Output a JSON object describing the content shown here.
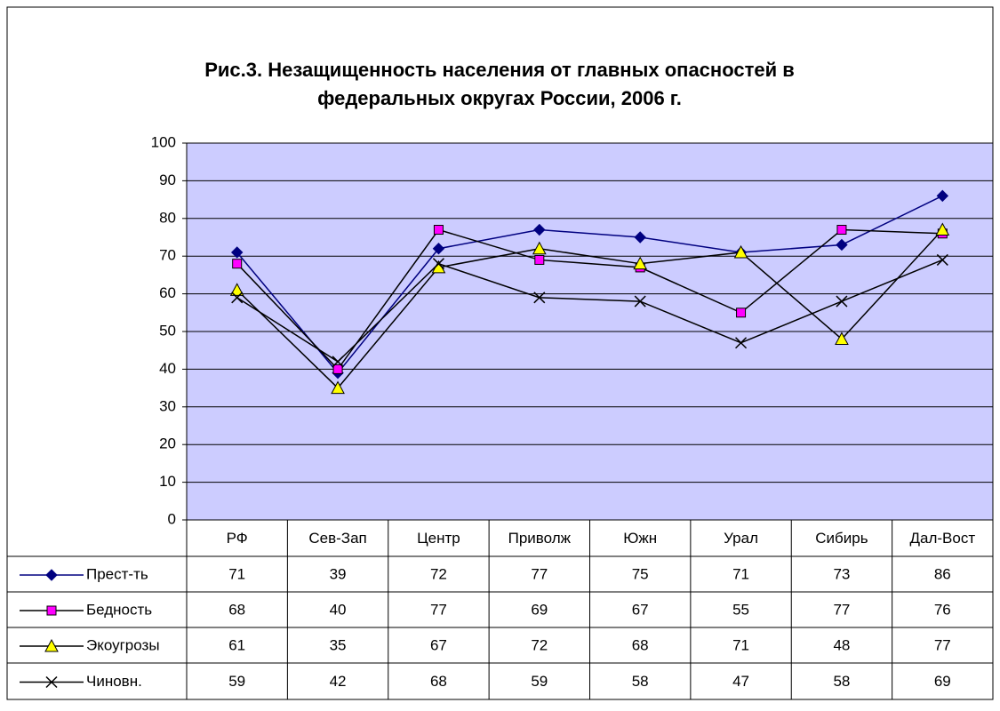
{
  "chart_data": {
    "type": "line",
    "title": "Рис.3. Незащищенность населения от главных опасностей в федеральных округах России, 2006 г.",
    "categories": [
      "РФ",
      "Сев-Зап",
      "Центр",
      "Приволж",
      "Южн",
      "Урал",
      "Сибирь",
      "Дал-Вост"
    ],
    "series": [
      {
        "name": "Прест-ть",
        "color": "#000080",
        "marker": "diamond",
        "marker_color": "#000080",
        "values": [
          71,
          39,
          72,
          77,
          75,
          71,
          73,
          86
        ]
      },
      {
        "name": "Бедность",
        "color": "#000000",
        "marker": "square",
        "marker_color": "#ff00ff",
        "values": [
          68,
          40,
          77,
          69,
          67,
          55,
          77,
          76
        ]
      },
      {
        "name": "Экоугрозы",
        "color": "#000000",
        "marker": "triangle",
        "marker_color": "#ffff00",
        "values": [
          61,
          35,
          67,
          72,
          68,
          71,
          48,
          77
        ]
      },
      {
        "name": "Чиновн.",
        "color": "#000000",
        "marker": "x",
        "marker_color": "#000000",
        "values": [
          59,
          42,
          68,
          59,
          58,
          47,
          58,
          69
        ]
      }
    ],
    "ylim": [
      0,
      100
    ],
    "yticks": [
      0,
      10,
      20,
      30,
      40,
      50,
      60,
      70,
      80,
      90,
      100
    ],
    "grid": true,
    "plot_background": "#ccccff",
    "data_table": true
  }
}
